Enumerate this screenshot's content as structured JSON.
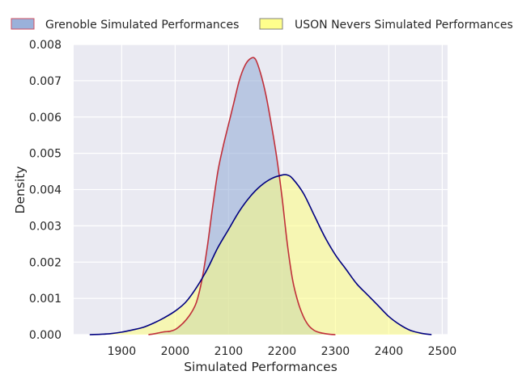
{
  "chart_data": {
    "type": "area",
    "title": "",
    "xlabel": "Simulated Performances",
    "ylabel": "Density",
    "xlim": [
      1810,
      2510
    ],
    "ylim": [
      0,
      0.008
    ],
    "grid": true,
    "legend_position": "top",
    "x_ticks": [
      1900,
      2000,
      2100,
      2200,
      2300,
      2400,
      2500
    ],
    "y_ticks": [
      0.0,
      0.001,
      0.002,
      0.003,
      0.004,
      0.005,
      0.006,
      0.007,
      0.008
    ],
    "x_tick_labels": [
      "1900",
      "2000",
      "2100",
      "2200",
      "2300",
      "2400",
      "2500"
    ],
    "y_tick_labels": [
      "0.000",
      "0.001",
      "0.002",
      "0.003",
      "0.004",
      "0.005",
      "0.006",
      "0.007",
      "0.008"
    ],
    "series": [
      {
        "name": "Grenoble Simulated Performances",
        "fill": "#8fa9d6",
        "line": "#c0303a",
        "edge": "#d15060",
        "points": [
          [
            1950,
            0.0
          ],
          [
            1960,
            2e-05
          ],
          [
            1970,
            5e-05
          ],
          [
            1980,
            8e-05
          ],
          [
            1990,
            9e-05
          ],
          [
            2000,
            0.00014
          ],
          [
            2010,
            0.00025
          ],
          [
            2020,
            0.0004
          ],
          [
            2030,
            0.0006
          ],
          [
            2040,
            0.0009
          ],
          [
            2050,
            0.0015
          ],
          [
            2060,
            0.0024
          ],
          [
            2070,
            0.0035
          ],
          [
            2080,
            0.0045
          ],
          [
            2090,
            0.0052
          ],
          [
            2100,
            0.0058
          ],
          [
            2110,
            0.0064
          ],
          [
            2120,
            0.007
          ],
          [
            2130,
            0.0074
          ],
          [
            2140,
            0.0076
          ],
          [
            2150,
            0.0076
          ],
          [
            2160,
            0.0072
          ],
          [
            2170,
            0.0066
          ],
          [
            2180,
            0.0058
          ],
          [
            2190,
            0.0049
          ],
          [
            2200,
            0.0038
          ],
          [
            2210,
            0.0025
          ],
          [
            2220,
            0.0015
          ],
          [
            2230,
            0.0009
          ],
          [
            2240,
            0.0005
          ],
          [
            2250,
            0.00025
          ],
          [
            2260,
            0.00012
          ],
          [
            2270,
            6e-05
          ],
          [
            2280,
            3e-05
          ],
          [
            2290,
            1e-05
          ],
          [
            2300,
            0.0
          ]
        ]
      },
      {
        "name": "USON Nevers Simulated Performances",
        "fill": "#ffff80",
        "line": "#000080",
        "edge": "#808080",
        "points": [
          [
            1840,
            0.0
          ],
          [
            1860,
            1e-05
          ],
          [
            1880,
            3e-05
          ],
          [
            1900,
            7e-05
          ],
          [
            1920,
            0.00013
          ],
          [
            1940,
            0.0002
          ],
          [
            1960,
            0.00032
          ],
          [
            1980,
            0.00047
          ],
          [
            2000,
            0.00065
          ],
          [
            2020,
            0.0009
          ],
          [
            2040,
            0.0013
          ],
          [
            2060,
            0.0018
          ],
          [
            2080,
            0.0024
          ],
          [
            2100,
            0.0029
          ],
          [
            2120,
            0.0034
          ],
          [
            2140,
            0.0038
          ],
          [
            2160,
            0.0041
          ],
          [
            2180,
            0.0043
          ],
          [
            2200,
            0.0044
          ],
          [
            2210,
            0.0044
          ],
          [
            2220,
            0.0043
          ],
          [
            2240,
            0.0039
          ],
          [
            2260,
            0.0033
          ],
          [
            2280,
            0.0027
          ],
          [
            2300,
            0.0022
          ],
          [
            2320,
            0.0018
          ],
          [
            2340,
            0.0014
          ],
          [
            2360,
            0.0011
          ],
          [
            2380,
            0.0008
          ],
          [
            2400,
            0.0005
          ],
          [
            2420,
            0.00028
          ],
          [
            2440,
            0.00012
          ],
          [
            2460,
            4e-05
          ],
          [
            2480,
            0.0
          ]
        ]
      }
    ]
  }
}
